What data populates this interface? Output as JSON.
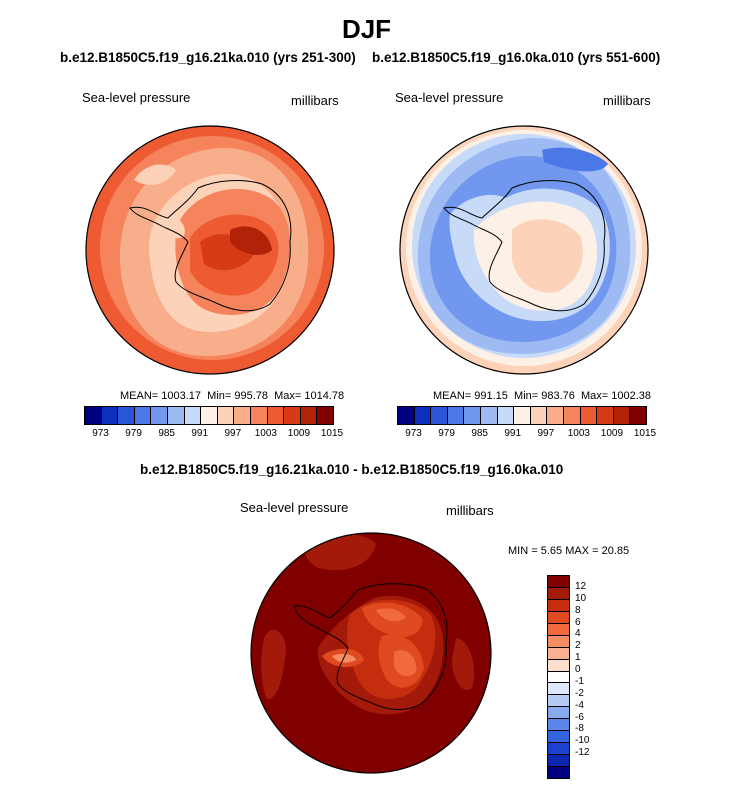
{
  "title": "DJF",
  "panels": [
    {
      "case": "b.e12.B1850C5.f19_g16.21ka.010 (yrs 251-300)",
      "variable": "Sea-level pressure",
      "units": "millibars",
      "mean_label": "MEAN= 1003.17",
      "min_label": "Min= 995.78",
      "max_label": "Max= 1014.78"
    },
    {
      "case": "b.e12.B1850C5.f19_g16.0ka.010 (yrs 551-600)",
      "variable": "Sea-level pressure",
      "units": "millibars",
      "mean_label": "MEAN= 991.15",
      "min_label": "Min= 983.76",
      "max_label": "Max= 1002.38"
    }
  ],
  "diff": {
    "title": "b.e12.B1850C5.f19_g16.21ka.010 - b.e12.B1850C5.f19_g16.0ka.010",
    "variable": "Sea-level pressure",
    "units": "millibars",
    "min_label": "MIN =",
    "min_value": "5.65",
    "max_label": "MAX =",
    "max_value": "20.85"
  },
  "abs_colorbar": {
    "colors": [
      "#00007f",
      "#0c2fbe",
      "#2a55d6",
      "#4a78e6",
      "#7198ee",
      "#9dbaf3",
      "#c7daf8",
      "#fdf0e6",
      "#fcd2b8",
      "#f9ae8b",
      "#f5845c",
      "#ee5a31",
      "#d63a17",
      "#b12208",
      "#800000"
    ],
    "ticks": [
      "973",
      "979",
      "985",
      "991",
      "997",
      "1003",
      "1009",
      "1015"
    ]
  },
  "diff_colorbar": {
    "colors": [
      "#800000",
      "#a31a0a",
      "#c42e0e",
      "#e04a20",
      "#f06a3c",
      "#f58d63",
      "#f9b392",
      "#fde0cc",
      "#ffffff",
      "#dde8fb",
      "#b5cbf5",
      "#8aaaf0",
      "#5d86ea",
      "#3564e0",
      "#1b41cf",
      "#0d26b0",
      "#000080"
    ],
    "ticks": [
      "12",
      "10",
      "8",
      "6",
      "4",
      "2",
      "1",
      "0",
      "-1",
      "-2",
      "-4",
      "-6",
      "-8",
      "-10",
      "-12"
    ]
  },
  "map_colors": {
    "lgm": {
      "outer": "#ee5a31",
      "ring": "#f5845c",
      "mid": "#f9ae8b",
      "light": "#fcd2b8",
      "dark": "#d63a17",
      "darker": "#b12208"
    },
    "pi": {
      "outer": "#fcd2b8",
      "ring": "#fdf0e6",
      "low": "#7198ee",
      "lowmid": "#9dbaf3",
      "lowlight": "#c7daf8",
      "deep": "#4a78e6",
      "cont": "#fcd2b8",
      "contlight": "#fdf0e6"
    },
    "diff": {
      "outer": "#800000",
      "ring": "#a31a0a",
      "mid": "#c42e0e",
      "inner": "#e04a20",
      "light": "#f06a3c",
      "lighter": "#f58d63"
    }
  }
}
